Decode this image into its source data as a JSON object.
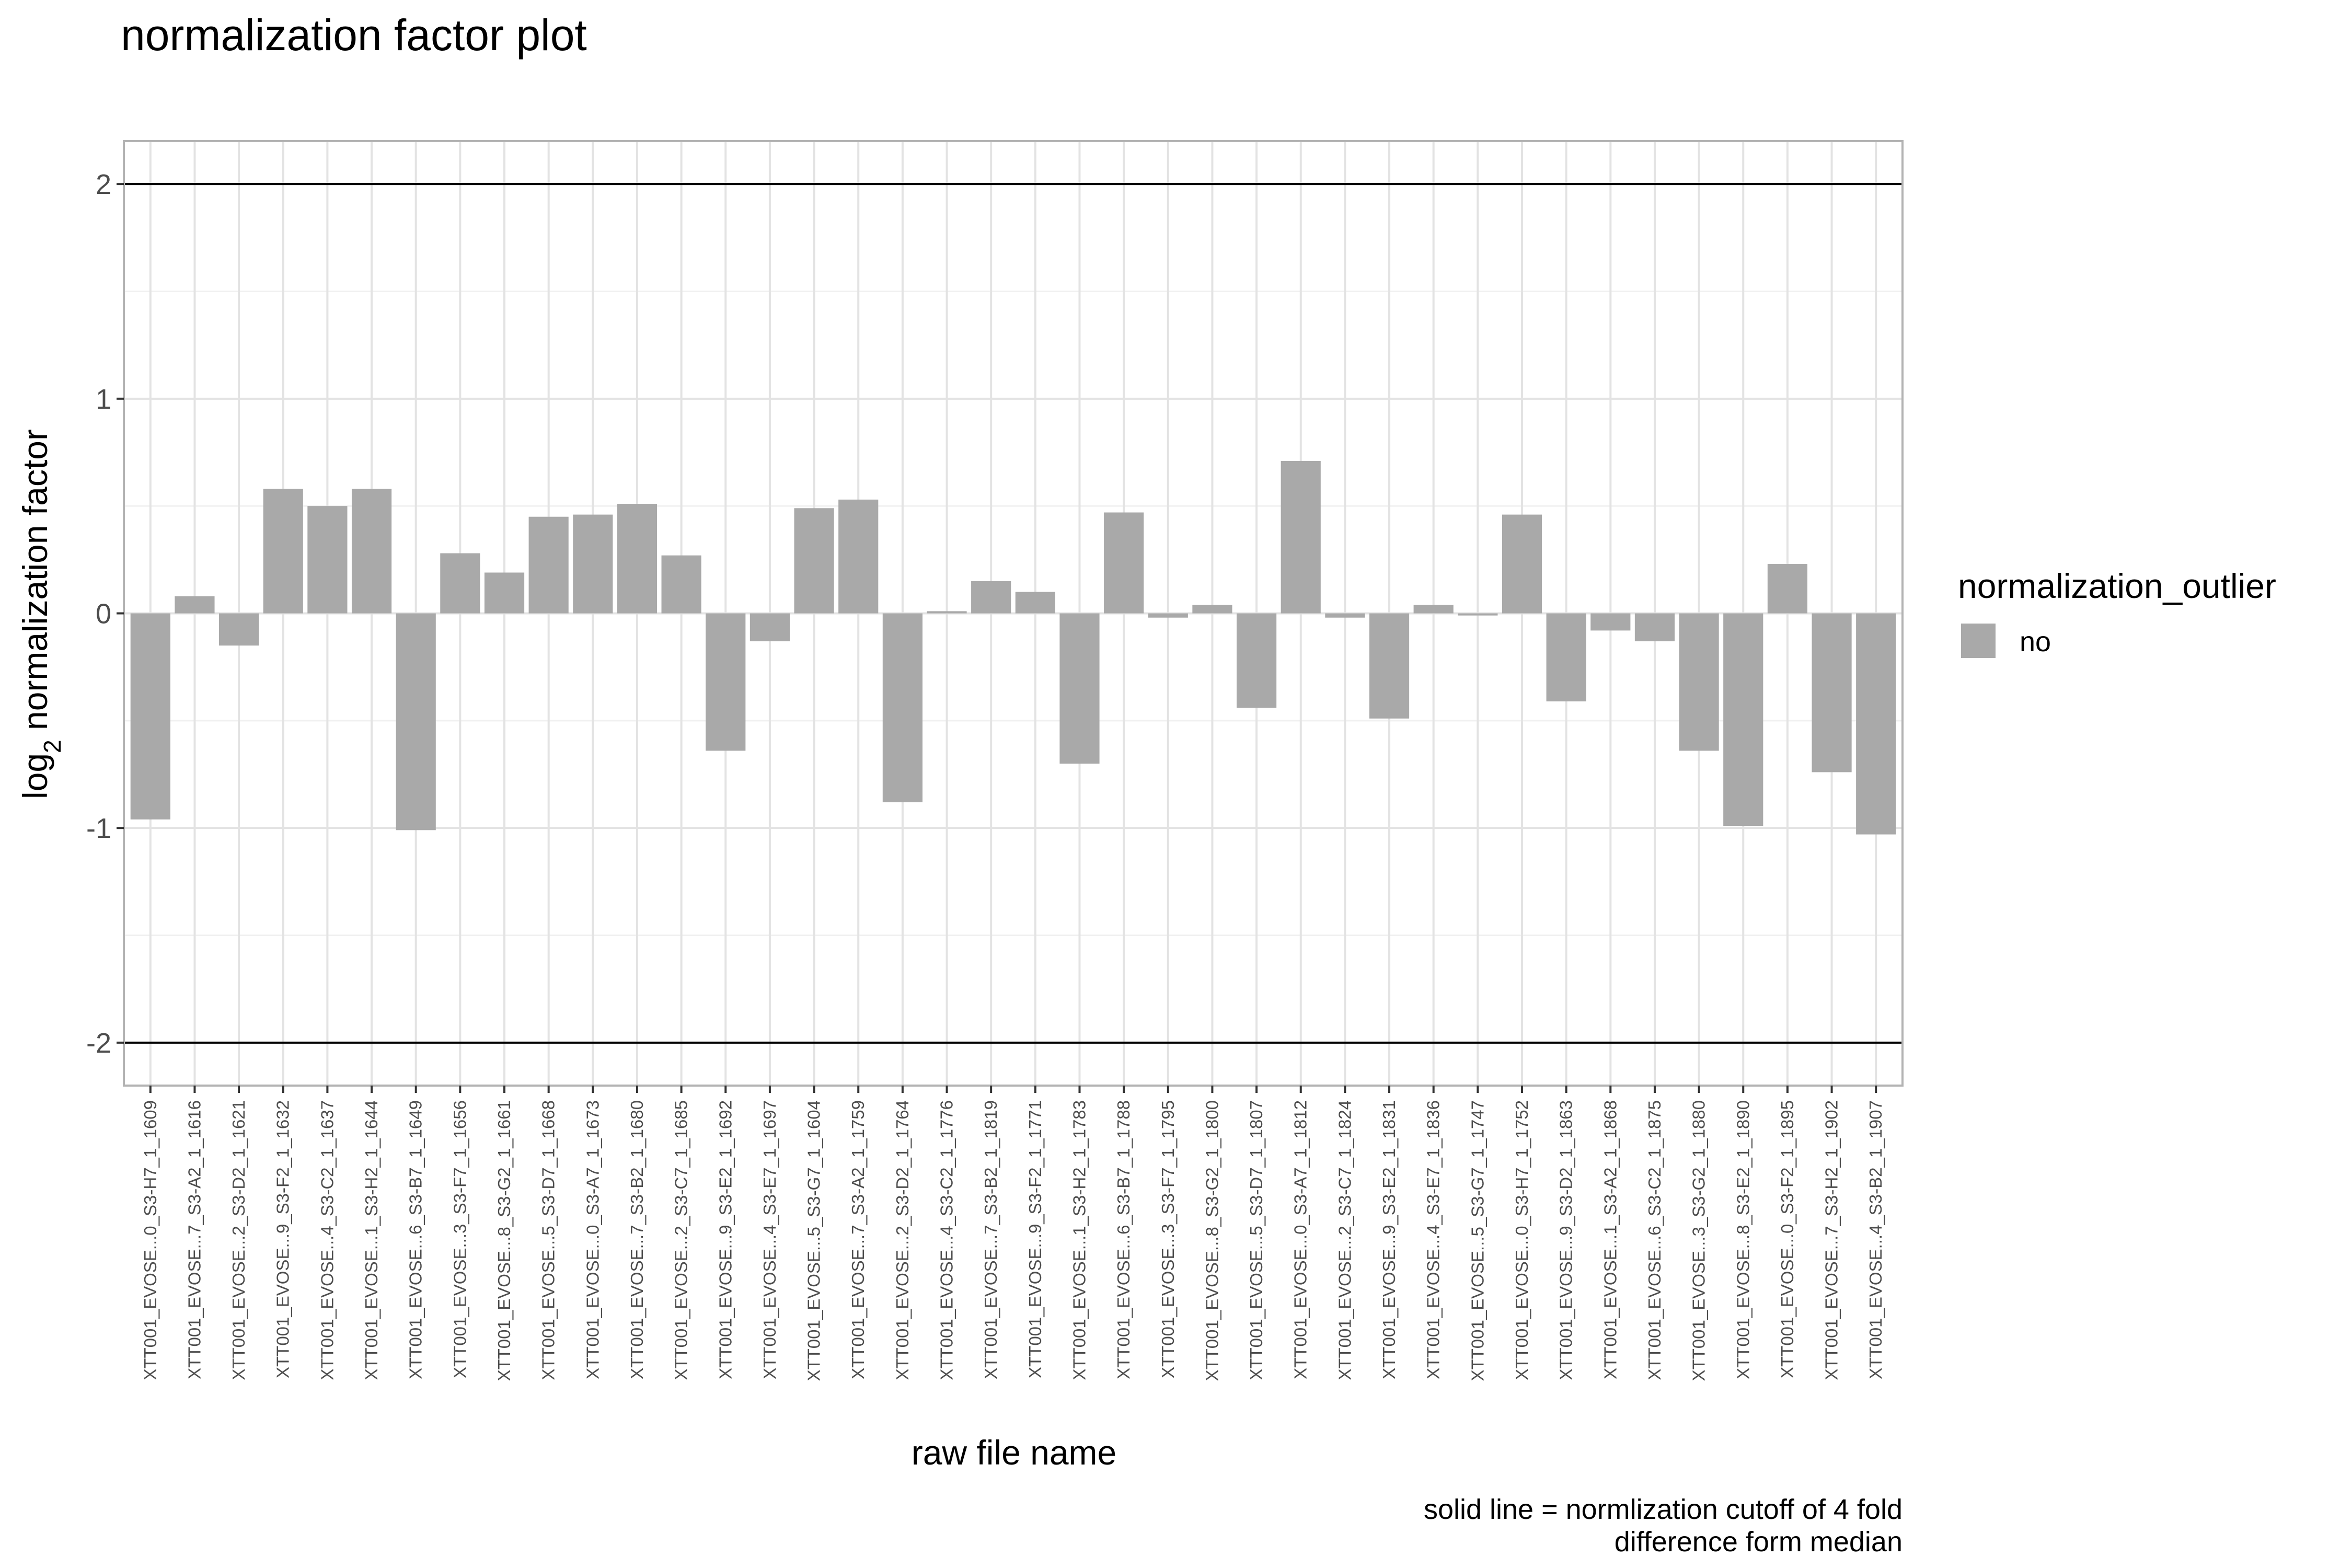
{
  "chart_data": {
    "type": "bar",
    "title": "normalization factor plot",
    "xlabel": "raw file name",
    "ylabel_main": "log",
    "ylabel_sub": "2",
    "ylabel_rest": " normalization factor",
    "ylim": [
      -2.2,
      2.2
    ],
    "yticks": [
      -2,
      -1,
      0,
      1,
      2
    ],
    "ytick_labels": [
      "-2",
      "-1",
      "0",
      "1",
      "2"
    ],
    "cutoff_lines": [
      2,
      -2
    ],
    "bar_color": "#a9a9a9",
    "legend": {
      "title": "normalization_outlier",
      "items": [
        {
          "label": "no",
          "color": "#a9a9a9"
        }
      ]
    },
    "caption": [
      "solid line = normlization cutoff of 4 fold",
      "difference form median"
    ],
    "categories": [
      "XTT001_EVOSE...0_S3-H7_1_1609",
      "XTT001_EVOSE...7_S3-A2_1_1616",
      "XTT001_EVOSE...2_S3-D2_1_1621",
      "XTT001_EVOSE...9_S3-F2_1_1632",
      "XTT001_EVOSE...4_S3-C2_1_1637",
      "XTT001_EVOSE...1_S3-H2_1_1644",
      "XTT001_EVOSE...6_S3-B7_1_1649",
      "XTT001_EVOSE...3_S3-F7_1_1656",
      "XTT001_EVOSE...8_S3-G2_1_1661",
      "XTT001_EVOSE...5_S3-D7_1_1668",
      "XTT001_EVOSE...0_S3-A7_1_1673",
      "XTT001_EVOSE...7_S3-B2_1_1680",
      "XTT001_EVOSE...2_S3-C7_1_1685",
      "XTT001_EVOSE...9_S3-E2_1_1692",
      "XTT001_EVOSE...4_S3-E7_1_1697",
      "XTT001_EVOSE...5_S3-G7_1_1604",
      "XTT001_EVOSE...7_S3-A2_1_1759",
      "XTT001_EVOSE...2_S3-D2_1_1764",
      "XTT001_EVOSE...4_S3-C2_1_1776",
      "XTT001_EVOSE...7_S3-B2_1_1819",
      "XTT001_EVOSE...9_S3-F2_1_1771",
      "XTT001_EVOSE...1_S3-H2_1_1783",
      "XTT001_EVOSE...6_S3-B7_1_1788",
      "XTT001_EVOSE...3_S3-F7_1_1795",
      "XTT001_EVOSE...8_S3-G2_1_1800",
      "XTT001_EVOSE...5_S3-D7_1_1807",
      "XTT001_EVOSE...0_S3-A7_1_1812",
      "XTT001_EVOSE...2_S3-C7_1_1824",
      "XTT001_EVOSE...9_S3-E2_1_1831",
      "XTT001_EVOSE...4_S3-E7_1_1836",
      "XTT001_EVOSE...5_S3-G7_1_1747",
      "XTT001_EVOSE...0_S3-H7_1_1752",
      "XTT001_EVOSE...9_S3-D2_1_1863",
      "XTT001_EVOSE...1_S3-A2_1_1868",
      "XTT001_EVOSE...6_S3-C2_1_1875",
      "XTT001_EVOSE...3_S3-G2_1_1880",
      "XTT001_EVOSE...8_S3-E2_1_1890",
      "XTT001_EVOSE...0_S3-F2_1_1895",
      "XTT001_EVOSE...7_S3-H2_1_1902",
      "XTT001_EVOSE...4_S3-B2_1_1907"
    ],
    "values": [
      -0.96,
      0.08,
      -0.15,
      0.58,
      0.5,
      0.58,
      -1.01,
      0.28,
      0.19,
      0.45,
      0.46,
      0.51,
      0.27,
      -0.64,
      -0.13,
      0.49,
      0.53,
      -0.88,
      0.01,
      0.15,
      0.1,
      -0.7,
      0.47,
      -0.02,
      0.04,
      -0.44,
      0.71,
      -0.02,
      -0.49,
      0.04,
      -0.01,
      0.46,
      -0.41,
      -0.08,
      -0.13,
      -0.64,
      -0.99,
      0.23,
      -0.74,
      -1.03
    ]
  }
}
